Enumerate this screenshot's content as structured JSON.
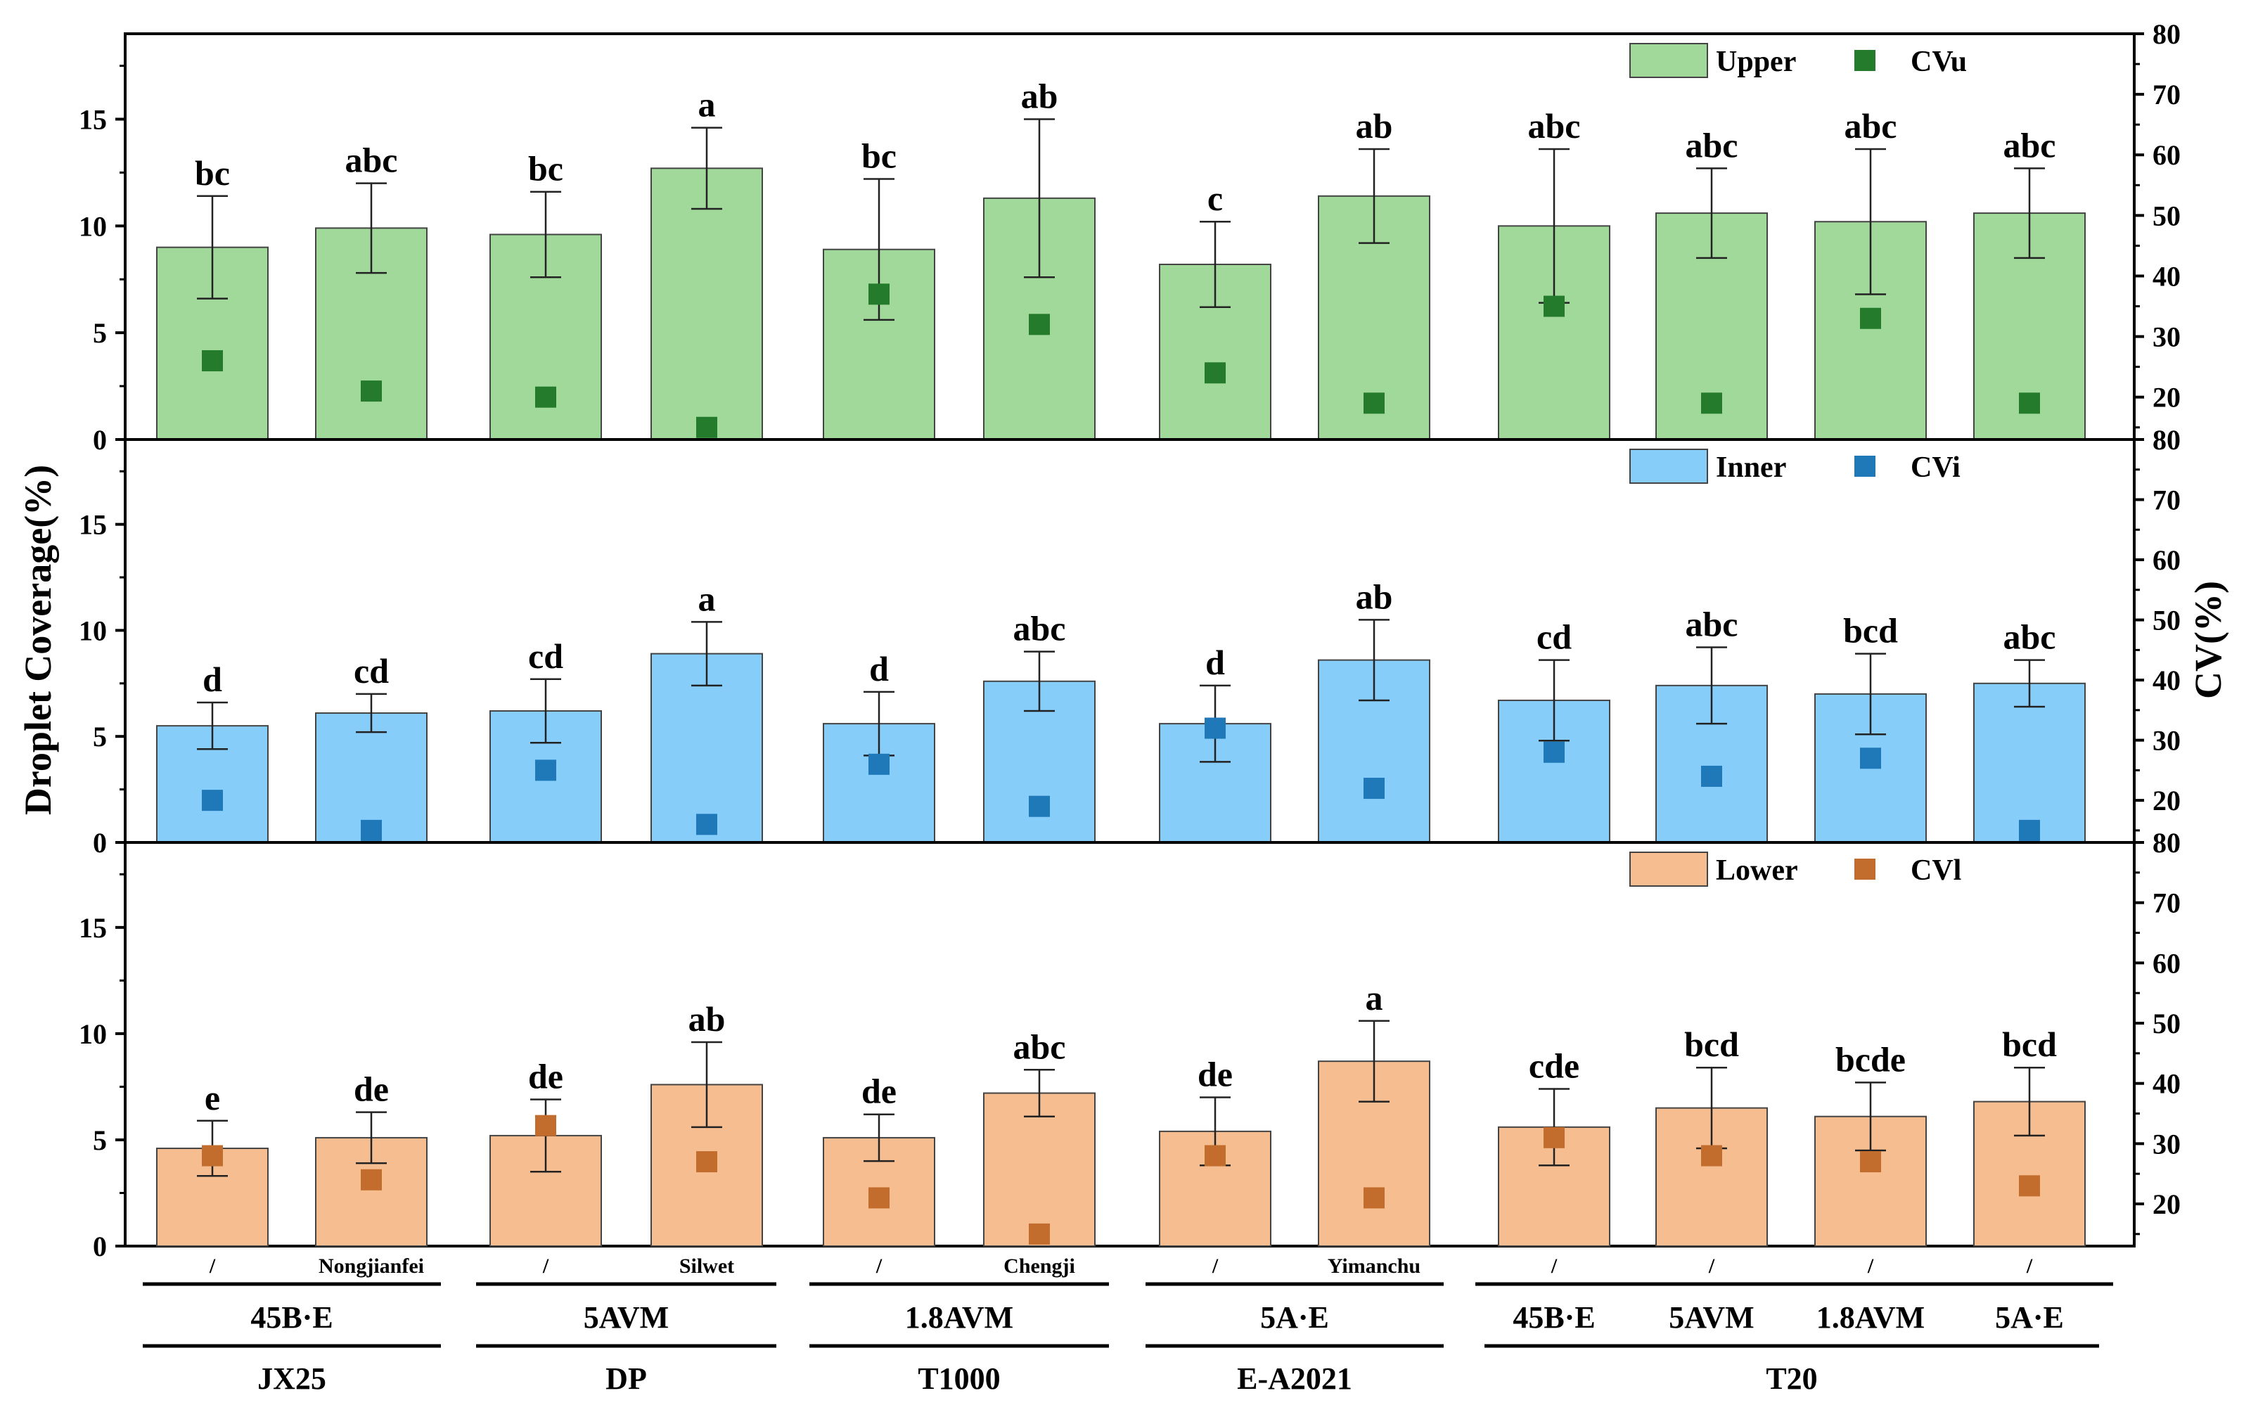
{
  "chart_data": {
    "type": "bar",
    "categories": [
      "JX25 45B·E /",
      "JX25 45B·E Nongjianfei",
      "DP 5AVM /",
      "DP 5AVM Silwet",
      "T1000 1.8AVM /",
      "T1000 1.8AVM Chengji",
      "E-A2021 5A·E /",
      "E-A2021 5A·E Yimanchu",
      "T20 45B·E /",
      "T20 5AVM /",
      "T20 1.8AVM /",
      "T20 5A·E /"
    ],
    "adjuvant_labels": [
      "/",
      "Nongjianfei",
      "/",
      "Silwet",
      "/",
      "Chengji",
      "/",
      "Yimanchu",
      "/",
      "/",
      "/",
      "/"
    ],
    "nozzle_groups": [
      {
        "label": "45B·E",
        "start": 0,
        "end": 1
      },
      {
        "label": "5AVM",
        "start": 2,
        "end": 3
      },
      {
        "label": "1.8AVM",
        "start": 4,
        "end": 5
      },
      {
        "label": "5A·E",
        "start": 6,
        "end": 7
      },
      {
        "label": "45B·E",
        "start": 8,
        "end": 8
      },
      {
        "label": "5AVM",
        "start": 9,
        "end": 9
      },
      {
        "label": "1.8AVM",
        "start": 10,
        "end": 10
      },
      {
        "label": "5A·E",
        "start": 11,
        "end": 11
      }
    ],
    "drone_groups": [
      {
        "label": "JX25",
        "start": 0,
        "end": 1
      },
      {
        "label": "DP",
        "start": 2,
        "end": 3
      },
      {
        "label": "T1000",
        "start": 4,
        "end": 5
      },
      {
        "label": "E-A2021",
        "start": 6,
        "end": 7
      },
      {
        "label": "T20",
        "start": 8,
        "end": 11
      }
    ],
    "ylabel": "Droplet Coverage(%)",
    "y2label": "CV(%)",
    "ylim": [
      0,
      19
    ],
    "y2lim": [
      13,
      80
    ],
    "yticks": [
      0,
      5,
      10,
      15
    ],
    "y2ticks_upper": [
      20,
      30,
      40,
      50,
      60,
      70,
      80
    ],
    "y2ticks_lower": [
      20,
      30,
      40,
      50,
      60,
      70,
      80
    ],
    "panels": [
      {
        "name": "Upper",
        "cv_name": "CVu",
        "bar_color": "#a1d99b",
        "marker_color": "#237b2b",
        "values": [
          9.0,
          9.9,
          9.6,
          12.7,
          8.9,
          11.3,
          8.2,
          11.4,
          10.0,
          10.6,
          10.2,
          10.6
        ],
        "errors": [
          2.4,
          2.1,
          2.0,
          1.9,
          3.3,
          3.7,
          2.0,
          2.2,
          3.6,
          2.1,
          3.4,
          2.1
        ],
        "letters": [
          "bc",
          "abc",
          "bc",
          "a",
          "bc",
          "ab",
          "c",
          "ab",
          "abc",
          "abc",
          "abc",
          "abc"
        ],
        "cv": [
          26,
          21,
          20,
          15,
          37,
          32,
          24,
          19,
          35,
          19,
          33,
          19
        ]
      },
      {
        "name": "Inner",
        "cv_name": "CVi",
        "bar_color": "#87cdfa",
        "marker_color": "#1f78b8",
        "values": [
          5.5,
          6.1,
          6.2,
          8.9,
          5.6,
          7.6,
          5.6,
          8.6,
          6.7,
          7.4,
          7.0,
          7.5
        ],
        "errors": [
          1.1,
          0.9,
          1.5,
          1.5,
          1.5,
          1.4,
          1.8,
          1.9,
          1.9,
          1.8,
          1.9,
          1.1
        ],
        "letters": [
          "d",
          "cd",
          "cd",
          "a",
          "d",
          "abc",
          "d",
          "ab",
          "cd",
          "abc",
          "bcd",
          "abc"
        ],
        "cv": [
          20,
          15,
          25,
          16,
          26,
          19,
          32,
          22,
          28,
          24,
          27,
          15
        ]
      },
      {
        "name": "Lower",
        "cv_name": "CVl",
        "bar_color": "#f6bd90",
        "marker_color": "#c26d2e",
        "values": [
          4.6,
          5.1,
          5.2,
          7.6,
          5.1,
          7.2,
          5.4,
          8.7,
          5.6,
          6.5,
          6.1,
          6.8
        ],
        "errors": [
          1.3,
          1.2,
          1.7,
          2.0,
          1.1,
          1.1,
          1.6,
          1.9,
          1.8,
          1.9,
          1.6,
          1.6
        ],
        "letters": [
          "e",
          "de",
          "de",
          "ab",
          "de",
          "abc",
          "de",
          "a",
          "cde",
          "bcd",
          "bcde",
          "bcd"
        ],
        "cv": [
          28,
          24,
          33,
          27,
          21,
          15,
          28,
          21,
          31,
          28,
          27,
          23
        ]
      }
    ],
    "legend_position": "top-right",
    "grid": false
  }
}
